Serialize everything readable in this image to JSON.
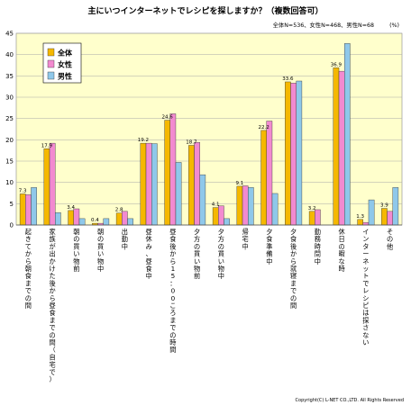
{
  "chart_data": {
    "type": "bar",
    "title": "主にいつインターネットでレシピを探しますか？（複数回答可）",
    "subtitle": "全体N=536、女性N=468、男性N=68",
    "unit_label": "(%)",
    "ylim": [
      0,
      45
    ],
    "yticks": [
      0,
      5,
      10,
      15,
      20,
      25,
      30,
      35,
      40,
      45
    ],
    "grid": true,
    "legend_position": "top-left",
    "categories": [
      "起きてから朝食までの間",
      "家族が出かけた後から昼食までの間（自宅で）",
      "朝の買い物前",
      "朝の買い物中",
      "出勤中",
      "昼休み、昼食中",
      "昼食後から15：00ころまでの時間",
      "夕方の買い物前",
      "夕方の買い物中",
      "帰宅中",
      "夕食準備中",
      "夕食後から就寝までの間",
      "勤務時間中",
      "休日の暇な時",
      "インターネットでレシピは探さない",
      "その他"
    ],
    "series": [
      {
        "name": "全体",
        "color": "#f5b800",
        "values": [
          7.3,
          17.9,
          3.4,
          0.4,
          2.8,
          19.2,
          24.6,
          18.7,
          4.1,
          9.1,
          22.2,
          33.6,
          3.2,
          36.9,
          1.3,
          3.9
        ]
      },
      {
        "name": "女性",
        "color": "#f28ad0",
        "values": [
          7.1,
          19.2,
          3.8,
          0.4,
          3.2,
          19.2,
          26.1,
          19.4,
          4.5,
          9.2,
          24.4,
          33.3,
          3.6,
          36.1,
          0.6,
          3.2
        ]
      },
      {
        "name": "男性",
        "color": "#8fc8ea",
        "values": [
          8.8,
          2.9,
          1.5,
          1.5,
          1.5,
          19.1,
          14.7,
          11.8,
          1.5,
          8.8,
          7.4,
          33.8,
          0.0,
          42.6,
          5.9,
          8.8
        ]
      }
    ],
    "data_labels": [
      "7.3",
      "17.9",
      "3.4",
      "0.4",
      "2.8",
      "19.2",
      "24.6",
      "18.7",
      "4.1",
      "9.1",
      "22.2",
      "33.6",
      "3.2",
      "36.9",
      "1.3",
      "3.9"
    ]
  },
  "footer": {
    "copyright": "Copyright(C) L-NET CO.,LTD. All Rights Reserved"
  }
}
